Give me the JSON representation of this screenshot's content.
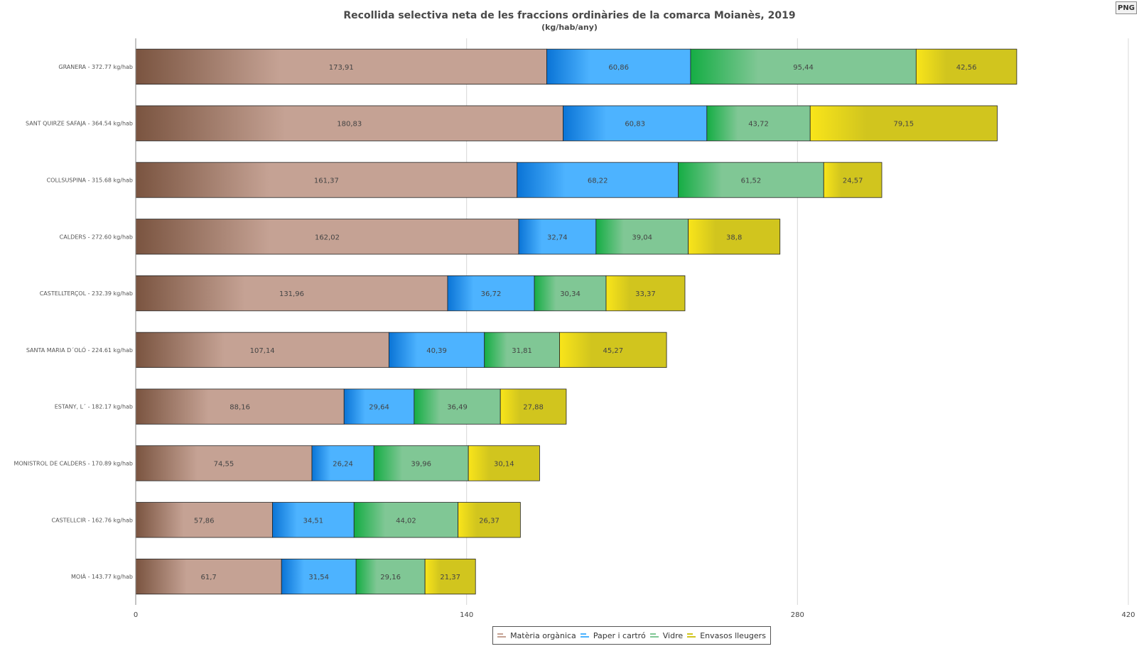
{
  "header": {
    "title": "Recollida selectiva neta de les fraccions ordinàries de la comarca Moianès, 2019",
    "subtitle": "(kg/hab/any)",
    "export_label": "PNG"
  },
  "chart_data": {
    "type": "bar",
    "orientation": "horizontal",
    "stacked": true,
    "title": "Recollida selectiva neta de les fraccions ordinàries de la comarca Moianès, 2019",
    "subtitle": "(kg/hab/any)",
    "xlim": [
      0,
      420
    ],
    "xticks": [
      0,
      140,
      280,
      420
    ],
    "grid": true,
    "legend_position": "bottom",
    "categories": [
      "GRANERA - 372.77 kg/hab",
      "SANT QUIRZE SAFAJA - 364.54 kg/hab",
      "COLLSUSPINA - 315.68 kg/hab",
      "CALDERS - 272.60 kg/hab",
      "CASTELLTERÇOL - 232.39 kg/hab",
      "SANTA MARIA D´OLÓ - 224.61 kg/hab",
      "ESTANY, L´ - 182.17 kg/hab",
      "MONISTROL DE CALDERS - 170.89 kg/hab",
      "CASTELLCIR - 162.76 kg/hab",
      "MOIÀ - 143.77 kg/hab"
    ],
    "series": [
      {
        "name": "Matèria orgànica",
        "color": "#c5a294",
        "gradient_start": "#7a5440",
        "values": [
          173.91,
          180.83,
          161.37,
          162.02,
          131.96,
          107.14,
          88.16,
          74.55,
          57.86,
          61.7
        ],
        "labels": [
          "173,91",
          "180,83",
          "161,37",
          "162,02",
          "131,96",
          "107,14",
          "88,16",
          "74,55",
          "57,86",
          "61,7"
        ]
      },
      {
        "name": "Paper i cartró",
        "color": "#4db3ff",
        "gradient_start": "#0a74d6",
        "values": [
          60.86,
          60.83,
          68.22,
          32.74,
          36.72,
          40.39,
          29.64,
          26.24,
          34.51,
          31.54
        ],
        "labels": [
          "60,86",
          "60,83",
          "68,22",
          "32,74",
          "36,72",
          "40,39",
          "29,64",
          "26,24",
          "34,51",
          "31,54"
        ]
      },
      {
        "name": "Vidre",
        "color": "#80c795",
        "gradient_start": "#15ad44",
        "values": [
          95.44,
          43.72,
          61.52,
          39.04,
          30.34,
          31.81,
          36.49,
          39.96,
          44.02,
          29.16
        ],
        "labels": [
          "95,44",
          "43,72",
          "61,52",
          "39,04",
          "30,34",
          "31,81",
          "36,49",
          "39,96",
          "44,02",
          "29,16"
        ]
      },
      {
        "name": "Envasos lleugers",
        "color": "#d1c51e",
        "gradient_start": "#f9e51a",
        "values": [
          42.56,
          79.15,
          24.57,
          38.8,
          33.37,
          45.27,
          27.88,
          30.14,
          26.37,
          21.37
        ],
        "labels": [
          "42,56",
          "79,15",
          "24,57",
          "38,8",
          "33,37",
          "45,27",
          "27,88",
          "30,14",
          "26,37",
          "21,37"
        ]
      }
    ]
  }
}
